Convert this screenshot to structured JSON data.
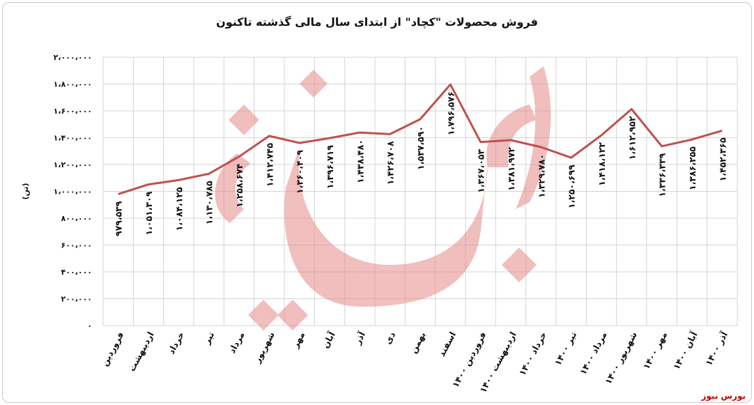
{
  "chart_data": {
    "type": "line",
    "title": "فروش محصولات \"کچاد\" از ابتدای سال مالی گذشته تاکنون",
    "ylabel": "(تن)",
    "ylim": [
      0,
      2000000
    ],
    "yticks": [
      "۰",
      "۲۰۰،۰۰۰",
      "۴۰۰،۰۰۰",
      "۶۰۰،۰۰۰",
      "۸۰۰،۰۰۰",
      "۱،۰۰۰،۰۰۰",
      "۱،۲۰۰،۰۰۰",
      "۱،۴۰۰،۰۰۰",
      "۱،۶۰۰،۰۰۰",
      "۱،۸۰۰،۰۰۰",
      "۲،۰۰۰،۰۰۰"
    ],
    "grid": true,
    "legend": "none",
    "line_color": "#c0504d",
    "categories": [
      "فروردین",
      "اردیبهشت",
      "خرداد",
      "تیر",
      "مرداد",
      "شهریور",
      "مهر",
      "آبان",
      "آذر",
      "دی",
      "بهمن",
      "اسفند",
      "فروردین ۱۴۰۰",
      "اردیبهشت ۱۴۰۰",
      "خرداد ۱۴۰۰",
      "تیر ۱۴۰۰",
      "مرداد ۱۴۰۰",
      "شهریور ۱۴۰۰",
      "مهر ۱۴۰۰",
      "آبان ۱۴۰۰",
      "آذر ۱۴۰۰"
    ],
    "values": [
      979539,
      1051309,
      1084125,
      1130785,
      1258674,
      1412745,
      1360409,
      1396719,
      1438480,
      1426708,
      1537590,
      1796576,
      1367053,
      1381972,
      1329780,
      1250699,
      1418122,
      1612952,
      1336339,
      1386255,
      1452365
    ],
    "data_labels": [
      "۹۷۹،۵۳۹",
      "۱،۰۵۱،۳۰۹",
      "۱،۰۸۴،۱۲۵",
      "۱،۱۳۰،۷۸۵",
      "۱،۲۵۸،۶۷۴",
      "۱،۴۱۲،۷۴۵",
      "۱،۳۶۰،۴۰۹",
      "۱،۳۹۶،۷۱۹",
      "۱،۴۳۸،۴۸۰",
      "۱،۴۲۶،۷۰۸",
      "۱،۵۳۷،۵۹۰",
      "۱،۷۹۶،۵۷۶",
      "۱،۳۶۷،۰۵۳",
      "۱،۳۸۱،۹۷۲",
      "۱،۳۲۹،۷۸۰",
      "۱،۲۵۰،۶۹۹",
      "۱،۴۱۸،۱۲۲",
      "۱،۶۱۲،۹۵۲",
      "۱،۳۳۶،۳۳۹",
      "۱،۳۸۶،۲۵۵",
      "۱،۴۵۲،۳۶۵"
    ]
  },
  "source_label": "بورس نیوز",
  "watermark_text": "بورس نیوز"
}
